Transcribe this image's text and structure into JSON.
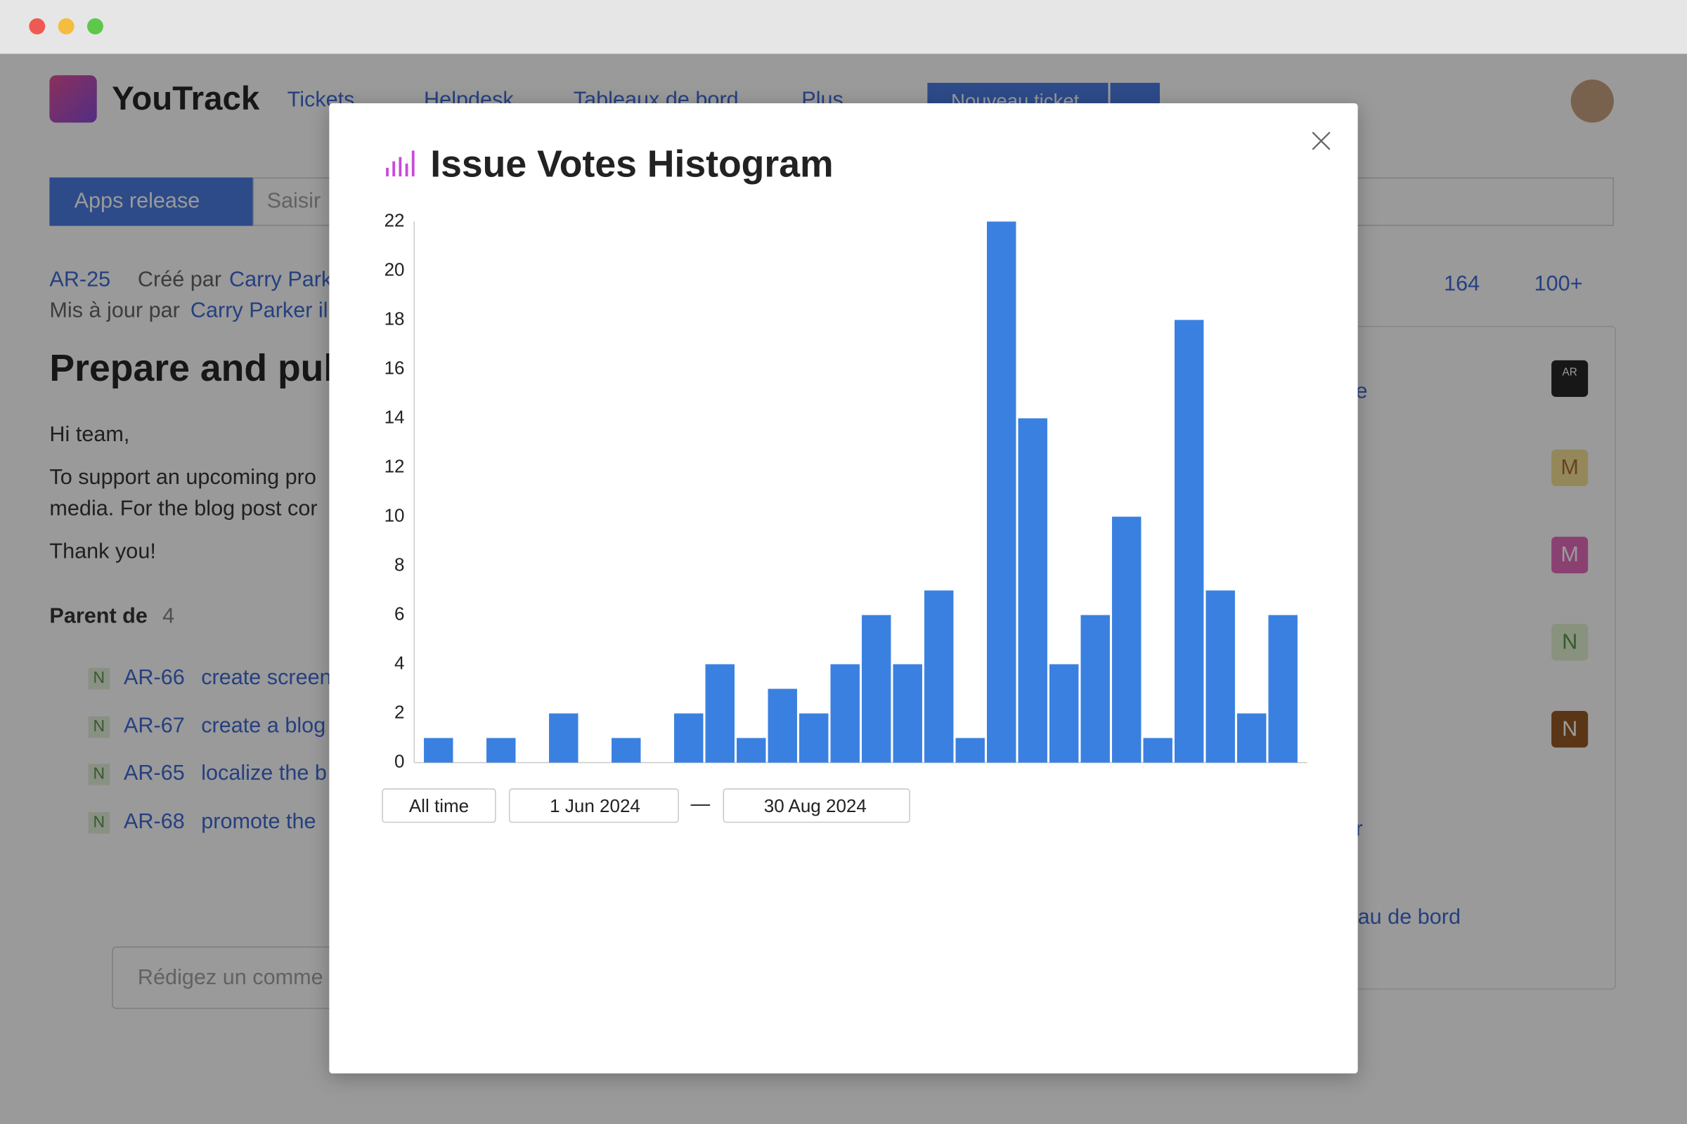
{
  "app": {
    "logo": "YouTrack",
    "nav": [
      "Tickets",
      "Helpdesk",
      "Tableaux de bord",
      "Plus"
    ],
    "new_ticket": "Nouveau ticket"
  },
  "toolbar": {
    "project": "Apps release",
    "search_placeholder": "Saisir"
  },
  "issue": {
    "id": "AR-25",
    "created_by_label": "Créé par",
    "author": "Carry Park",
    "updated_label": "Mis à jour par",
    "updater": "Carry Parker il",
    "votes": 164,
    "stars": "100+",
    "title": "Prepare and publ",
    "body": [
      "Hi team,",
      "To support an upcoming pro",
      "media. For the blog post cor",
      "Thank you!"
    ],
    "parent_label": "Parent de",
    "parent_count": 4,
    "subtasks": [
      {
        "tag": "N",
        "id": "AR-66",
        "title": "create screen"
      },
      {
        "tag": "N",
        "id": "AR-67",
        "title": "create a blog"
      },
      {
        "tag": "N",
        "id": "AR-65",
        "title": "localize the b"
      },
      {
        "tag": "N",
        "id": "AR-68",
        "title": "promote the"
      }
    ],
    "comment_placeholder": "Rédigez un comme"
  },
  "sidebar": {
    "fragments": [
      "e",
      "r",
      "au de bord"
    ],
    "avatars": [
      "AR",
      "M",
      "M",
      "N",
      "N"
    ]
  },
  "chart_data": {
    "type": "bar",
    "title": "Issue Votes Histogram",
    "categories": [
      null,
      null,
      null,
      null,
      null,
      null,
      null,
      null,
      null,
      null,
      null,
      null,
      null,
      null,
      null,
      null,
      null,
      null,
      null,
      null,
      null,
      null,
      null,
      null,
      null,
      null,
      null,
      null
    ],
    "values": [
      1,
      0,
      1,
      0,
      2,
      0,
      1,
      0,
      2,
      4,
      1,
      3,
      2,
      4,
      6,
      4,
      7,
      1,
      22,
      14,
      4,
      6,
      10,
      1,
      18,
      7,
      2,
      6
    ],
    "color": "#3a80e0",
    "ylim": [
      0,
      22
    ],
    "yticks": [
      0,
      2,
      4,
      6,
      8,
      10,
      12,
      14,
      16,
      18,
      20,
      22
    ],
    "grid": false
  },
  "filters": {
    "all_time": "All time",
    "from": "1 Jun 2024",
    "separator": "—",
    "to": "30 Aug 2024"
  }
}
